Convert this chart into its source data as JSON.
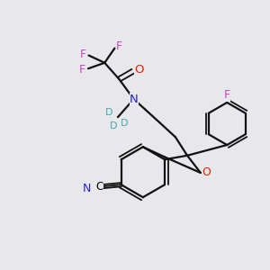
{
  "bg_color": "#e8e8ec",
  "atom_colors": {
    "N": "#2222cc",
    "O": "#dd2200",
    "F": "#cc44cc",
    "D": "#44aaaa",
    "CN_C": "#000000",
    "CN_N": "#2222cc"
  },
  "bond_color": "#111111"
}
